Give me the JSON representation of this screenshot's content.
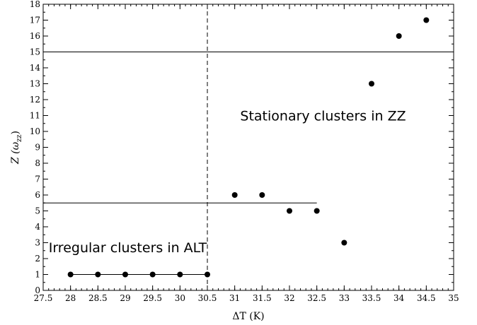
{
  "chart_data": {
    "type": "scatter",
    "xlabel": "ΔT (K)",
    "ylabel_main": "Z (ω",
    "ylabel_sub": "zz",
    "ylabel_close": ")",
    "xlim": [
      27.5,
      35
    ],
    "ylim": [
      0,
      18
    ],
    "x_ticks": [
      27.5,
      28,
      28.5,
      29,
      29.5,
      30,
      30.5,
      31,
      31.5,
      32,
      32.5,
      33,
      33.5,
      34,
      34.5,
      35
    ],
    "x_tick_labels": [
      "27.5",
      "28",
      "28.5",
      "29",
      "29.5",
      "30",
      "30.5",
      "31",
      "31.5",
      "32",
      "32.5",
      "33",
      "33.5",
      "34",
      "34.5",
      "35"
    ],
    "y_ticks": [
      0,
      1,
      2,
      3,
      4,
      5,
      6,
      7,
      8,
      9,
      10,
      11,
      12,
      13,
      14,
      15,
      16,
      17,
      18
    ],
    "y_tick_labels": [
      "0",
      "1",
      "2",
      "3",
      "4",
      "5",
      "6",
      "7",
      "8",
      "9",
      "10",
      "11",
      "12",
      "13",
      "14",
      "15",
      "16",
      "17",
      "18"
    ],
    "points": [
      {
        "x": 28,
        "y": 1
      },
      {
        "x": 28.5,
        "y": 1
      },
      {
        "x": 29,
        "y": 1
      },
      {
        "x": 29.5,
        "y": 1
      },
      {
        "x": 30,
        "y": 1
      },
      {
        "x": 30.5,
        "y": 1
      },
      {
        "x": 31,
        "y": 6
      },
      {
        "x": 31.5,
        "y": 6
      },
      {
        "x": 32,
        "y": 5
      },
      {
        "x": 32.5,
        "y": 5
      },
      {
        "x": 33,
        "y": 3
      },
      {
        "x": 33.5,
        "y": 13
      },
      {
        "x": 34,
        "y": 16
      },
      {
        "x": 34.5,
        "y": 17
      }
    ],
    "hlines": [
      {
        "y": 1,
        "x_from": 28,
        "x_to": 30.5
      },
      {
        "y": 5.5,
        "x_from": 27.5,
        "x_to": 32.5
      },
      {
        "y": 15,
        "x_from": 27.5,
        "x_to": 35
      }
    ],
    "vline": {
      "x": 30.5,
      "style": "dashed"
    },
    "annotations": [
      {
        "text": "Stationary clusters in ZZ",
        "x": 31.1,
        "y": 10.7
      },
      {
        "text": "Irregular clusters in ALT",
        "x": 27.6,
        "y": 2.4
      }
    ],
    "grid": false,
    "marker_color": "#000000"
  }
}
